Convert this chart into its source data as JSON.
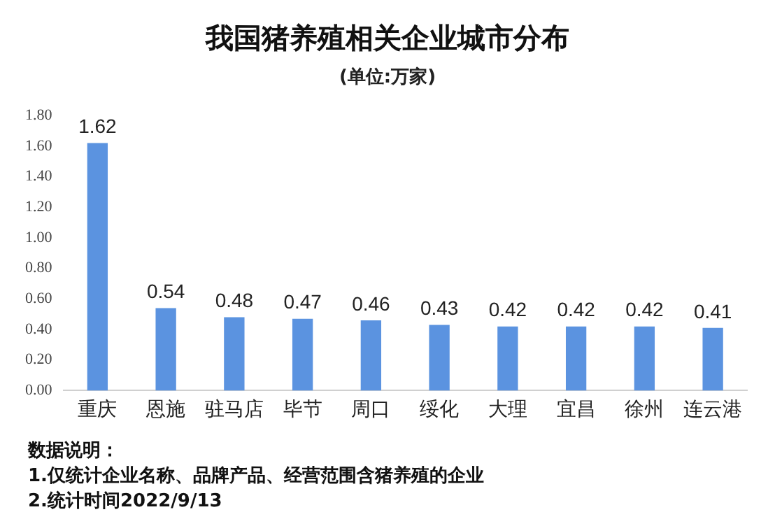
{
  "chart_data": {
    "type": "bar",
    "title": "我国猪养殖相关企业城市分布",
    "subtitle": "(单位:万家)",
    "categories": [
      "重庆",
      "恩施",
      "驻马店",
      "毕节",
      "周口",
      "绥化",
      "大理",
      "宜昌",
      "徐州",
      "连云港"
    ],
    "values": [
      1.62,
      0.54,
      0.48,
      0.47,
      0.46,
      0.43,
      0.42,
      0.42,
      0.42,
      0.41
    ],
    "color": "#5b93e0",
    "data_labels": true,
    "grid": false,
    "legend": false,
    "ylim": [
      0,
      1.8
    ],
    "yticks": [
      {
        "value": 0,
        "label": "0.00"
      },
      {
        "value": 0.2,
        "label": "0.20"
      },
      {
        "value": 0.4,
        "label": "0.40"
      },
      {
        "value": 0.6,
        "label": "0.60"
      },
      {
        "value": 0.8,
        "label": "0.80"
      },
      {
        "value": 1,
        "label": "1.00"
      },
      {
        "value": 1.2,
        "label": "1.20"
      },
      {
        "value": 1.4,
        "label": "1.40"
      },
      {
        "value": 1.6,
        "label": "1.60"
      },
      {
        "value": 1.8,
        "label": "1.80"
      }
    ],
    "annotations": [
      "数据说明：",
      "1.仅统计企业名称、品牌产品、经营范围含猪养殖的企业",
      "2.统计时间2022/9/13"
    ]
  }
}
